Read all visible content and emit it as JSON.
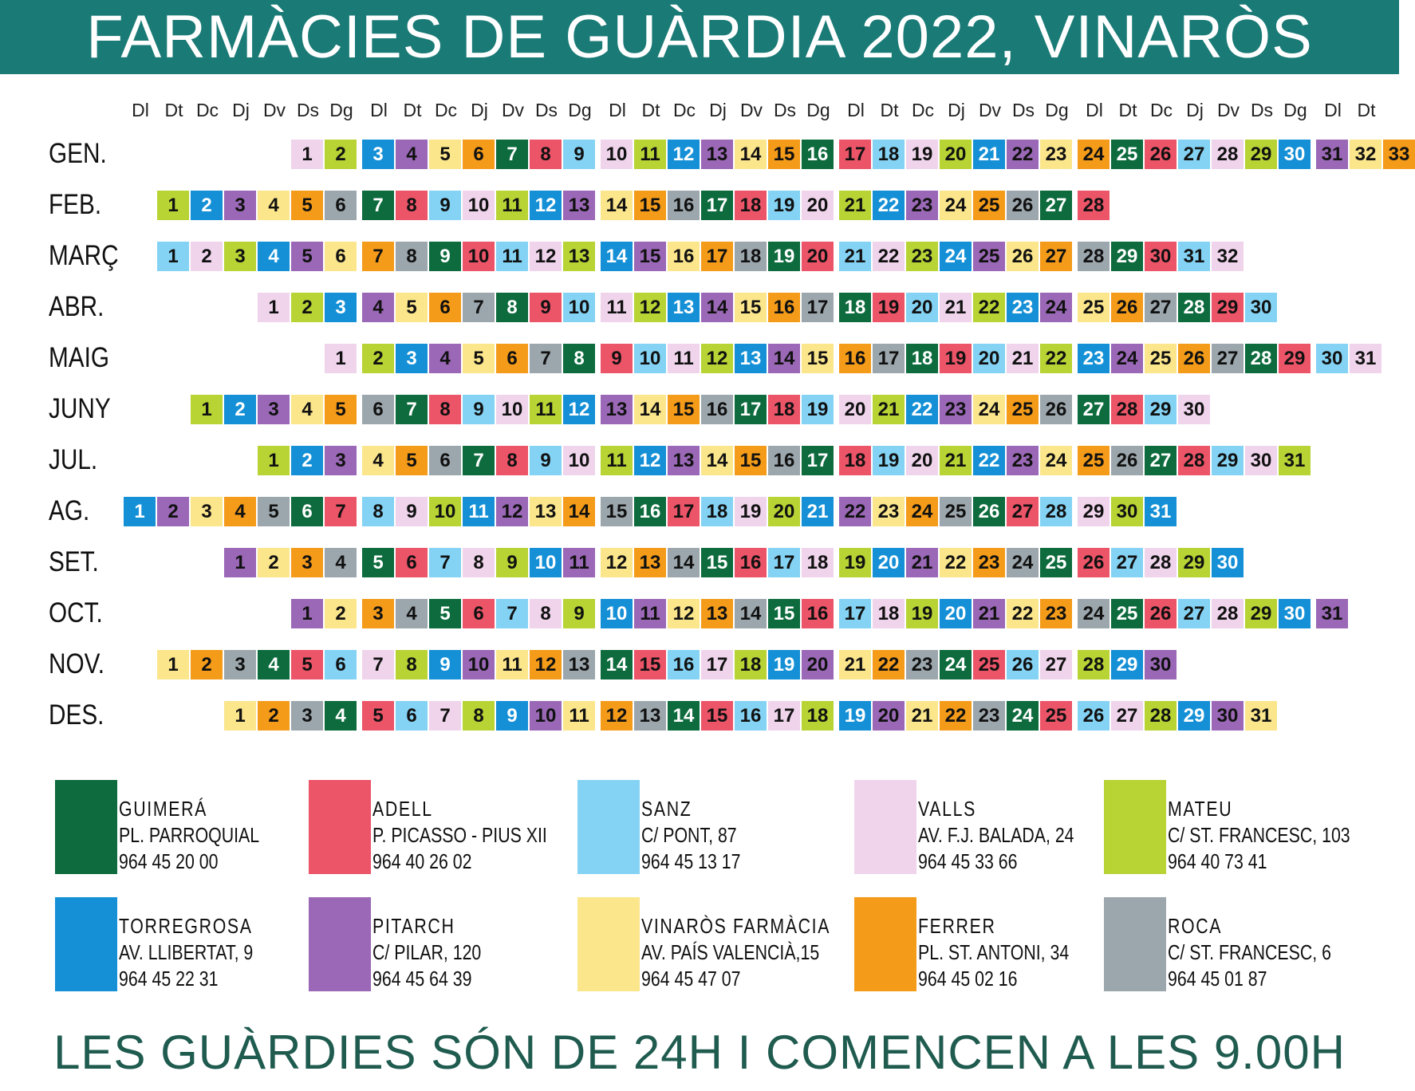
{
  "header": {
    "title": "FARMÀCIES DE GUÀRDIA 2022, VINARÒS"
  },
  "footer": {
    "text": "LES GUÀRDIES SÓN DE 24H I COMENCEN A LES 9.00H"
  },
  "weekdays": [
    "Dl",
    "Dt",
    "Dc",
    "Dj",
    "Dv",
    "Ds",
    "Dg",
    "Dl",
    "Dt",
    "Dc",
    "Dj",
    "Dv",
    "Ds",
    "Dg",
    "Dl",
    "Dt",
    "Dc",
    "Dj",
    "Dv",
    "Ds",
    "Dg",
    "Dl",
    "Dt",
    "Dc",
    "Dj",
    "Dv",
    "Ds",
    "Dg",
    "Dl",
    "Dt",
    "Dc",
    "Dj",
    "Dv",
    "Ds",
    "Dg",
    "Dl",
    "Dt"
  ],
  "pharmacies": {
    "G": {
      "name": "GUIMERÁ",
      "address": "PL. PARROQUIAL",
      "phone": "964 45 20 00",
      "color": "#0d6b3d"
    },
    "A": {
      "name": "ADELL",
      "address": "P. PICASSO - PIUS XII",
      "phone": "964 40 26 02",
      "color": "#ec5468"
    },
    "S": {
      "name": "SANZ",
      "address": "C/ PONT, 87",
      "phone": "964 45 13 17",
      "color": "#84d3f4"
    },
    "V": {
      "name": "VALLS",
      "address": "AV. F.J. BALADA, 24",
      "phone": "964 45 33 66",
      "color": "#efd4ec"
    },
    "M": {
      "name": "MATEU",
      "address": "C/ ST. FRANCESC, 103",
      "phone": "964 40 73 41",
      "color": "#b7d334"
    },
    "T": {
      "name": "TORREGROSA",
      "address": "AV. LLIBERTAT, 9",
      "phone": "964 45 22 31",
      "color": "#1590d6"
    },
    "P": {
      "name": "PITARCH",
      "address": "C/ PILAR, 120",
      "phone": "964 45 64 39",
      "color": "#9a68b6"
    },
    "F": {
      "name": "VINARÒS FARMÀCIA",
      "address": "AV. PAÍS VALENCIÀ,15",
      "phone": "964 45 47 07",
      "color": "#fbe68c"
    },
    "E": {
      "name": "FERRER",
      "address": "PL. ST. ANTONI, 34",
      "phone": "964 45 02 16",
      "color": "#f49b19"
    },
    "R": {
      "name": "ROCA",
      "address": "C/ ST. FRANCESC, 6",
      "phone": "964 45 01 87",
      "color": "#9ca7ad"
    }
  },
  "legend_order": [
    "G",
    "A",
    "S",
    "V",
    "M",
    "T",
    "P",
    "F",
    "E",
    "R"
  ],
  "months": [
    {
      "label": "GEN.",
      "start": 5,
      "duty": "VMTPFEGASVMTPFEGASVMTPFEGASVMTPFE"
    },
    {
      "label": "FEB.",
      "start": 1,
      "duty": "MTPFERGASVMTPFERGASVMTPFERGA"
    },
    {
      "label": "MARÇ",
      "start": 1,
      "duty": "SVMTPFERGASVMTPFERGASVMTPFERGASV"
    },
    {
      "label": "ABR.",
      "start": 4,
      "duty": "VMTPFERGASVMTPFERGASVMTPFERGAS"
    },
    {
      "label": "MAIG",
      "start": 6,
      "duty": "VMTPFERGASVMTPFERGASVMTPFERGASV"
    },
    {
      "label": "JUNY",
      "start": 2,
      "duty": "MTPFERGASVMTPFERGASVMTPFERGASV"
    },
    {
      "label": "JUL.",
      "start": 4,
      "duty": "MTPFERGASVMTPFERGASVMTPFERGASVM"
    },
    {
      "label": "AG.",
      "start": 0,
      "duty": "TPFERGASVMTPFERGASVMTPFERGASVMT"
    },
    {
      "label": "SET.",
      "start": 3,
      "duty": "PFERGASVMTPFERGASVMTPFERGASVMT"
    },
    {
      "label": "OCT.",
      "start": 5,
      "duty": "PFERGASVMTPFERGASVMTPFERGASVMTP"
    },
    {
      "label": "NOV.",
      "start": 1,
      "duty": "FERGASVMTPFERGASVMTPFERGASVMTP"
    },
    {
      "label": "DES.",
      "start": 3,
      "duty": "FERGASVMTPFERGASVMTPFERGASVMTPF"
    }
  ]
}
